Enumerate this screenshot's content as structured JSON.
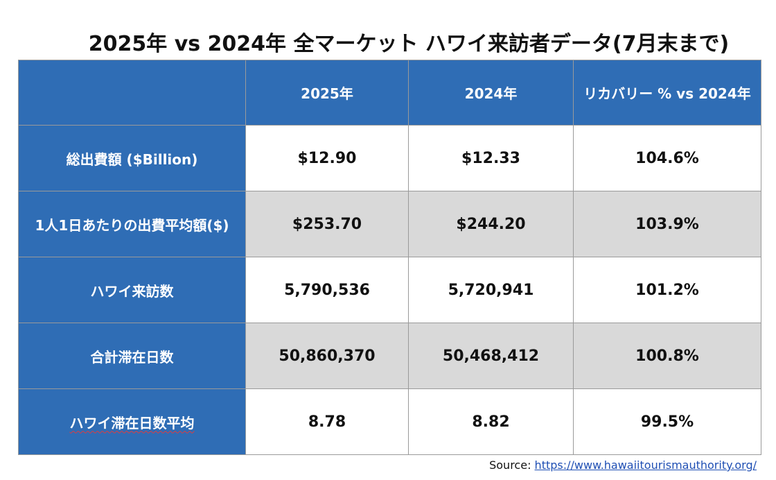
{
  "title": "2025年 vs 2024年 全マーケット ハワイ来訪者データ(7月末まで)",
  "table": {
    "headers": [
      "",
      "2025年",
      "2024年",
      "リカバリー % vs 2024年"
    ],
    "rows": [
      {
        "label": "総出費額 ($Billion)",
        "v2025": "$12.90",
        "v2024": "$12.33",
        "recovery": "104.6%"
      },
      {
        "label": "1人1日あたりの出費平均額($)",
        "v2025": "$253.70",
        "v2024": "$244.20",
        "recovery": "103.9%"
      },
      {
        "label": "ハワイ来訪数",
        "v2025": "5,790,536",
        "v2024": "5,720,941",
        "recovery": "101.2%"
      },
      {
        "label": "合計滞在日数",
        "v2025": "50,860,370",
        "v2024": "50,468,412",
        "recovery": "100.8%"
      },
      {
        "label": "ハワイ滞在日数平均",
        "v2025": "8.78",
        "v2024": "8.82",
        "recovery": "99.5%"
      }
    ]
  },
  "source": {
    "prefix": "Source:",
    "link_text": "https://www.hawaiitourismauthority.org/"
  },
  "colors": {
    "header_blue": "#2f6db5",
    "shaded_row": "#d9d9d9",
    "link_blue": "#1f4fb4"
  }
}
